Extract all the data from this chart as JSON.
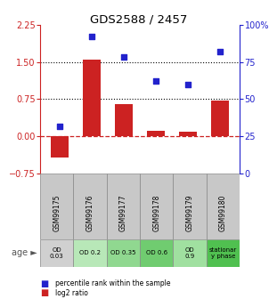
{
  "title": "GDS2588 / 2457",
  "samples": [
    "GSM99175",
    "GSM99176",
    "GSM99177",
    "GSM99178",
    "GSM99179",
    "GSM99180"
  ],
  "log2_ratio": [
    -0.42,
    1.55,
    0.65,
    0.12,
    0.1,
    0.72
  ],
  "percentile_rank": [
    32,
    92,
    78,
    62,
    60,
    82
  ],
  "bar_color": "#cc2222",
  "dot_color": "#2222cc",
  "ylim_left": [
    -0.75,
    2.25
  ],
  "ylim_right": [
    0,
    100
  ],
  "yticks_left": [
    -0.75,
    0,
    0.75,
    1.5,
    2.25
  ],
  "yticks_right": [
    0,
    25,
    50,
    75,
    100
  ],
  "hline1": 1.5,
  "hline2": 0.75,
  "hline0": 0.0,
  "age_labels": [
    "OD\n0.03",
    "OD 0.2",
    "OD 0.35",
    "OD 0.6",
    "OD\n0.9",
    "stationar\ny phase"
  ],
  "age_colors": [
    "#d0d0d0",
    "#b8e8b8",
    "#90d890",
    "#70cc70",
    "#a0e0a0",
    "#50c050"
  ],
  "sample_bg": "#c8c8c8",
  "bg_color": "#ffffff"
}
